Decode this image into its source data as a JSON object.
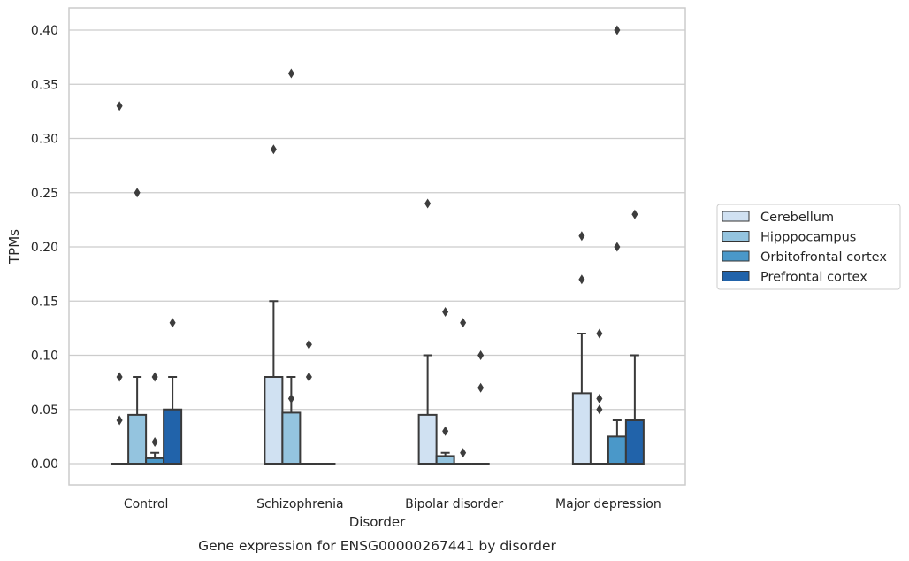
{
  "chart_data": {
    "type": "box",
    "caption": "Gene expression for ENSG00000267441 by disorder",
    "xlabel": "Disorder",
    "ylabel": "TPMs",
    "ylim": [
      -0.02,
      0.42
    ],
    "yticks": [
      0.0,
      0.05,
      0.1,
      0.15,
      0.2,
      0.25,
      0.3,
      0.35,
      0.4
    ],
    "ytick_labels": [
      "0.00",
      "0.05",
      "0.10",
      "0.15",
      "0.20",
      "0.25",
      "0.30",
      "0.35",
      "0.40"
    ],
    "categories": [
      "Control",
      "Schizophrenia",
      "Bipolar disorder",
      "Major depression"
    ],
    "grid": "horizontal",
    "legend_position": "right",
    "series": [
      {
        "name": "Cerebellum",
        "color": "#d0e1f2",
        "boxes": [
          {
            "q1": 0.0,
            "median": 0.0,
            "q3": 0.0,
            "whisker_low": 0.0,
            "whisker_high": 0.0,
            "outliers": [
              0.33,
              0.08,
              0.04
            ]
          },
          {
            "q1": 0.0,
            "median": 0.0,
            "q3": 0.08,
            "whisker_low": 0.0,
            "whisker_high": 0.15,
            "outliers": [
              0.29
            ]
          },
          {
            "q1": 0.0,
            "median": 0.0,
            "q3": 0.045,
            "whisker_low": 0.0,
            "whisker_high": 0.1,
            "outliers": [
              0.24
            ]
          },
          {
            "q1": 0.0,
            "median": 0.0,
            "q3": 0.065,
            "whisker_low": 0.0,
            "whisker_high": 0.12,
            "outliers": [
              0.21,
              0.17
            ]
          }
        ]
      },
      {
        "name": "Hipppocampus",
        "color": "#94c4df",
        "boxes": [
          {
            "q1": 0.0,
            "median": 0.0,
            "q3": 0.045,
            "whisker_low": 0.0,
            "whisker_high": 0.08,
            "outliers": [
              0.25
            ]
          },
          {
            "q1": 0.0,
            "median": 0.0,
            "q3": 0.047,
            "whisker_low": 0.0,
            "whisker_high": 0.08,
            "outliers": [
              0.36,
              0.06
            ]
          },
          {
            "q1": 0.0,
            "median": 0.0,
            "q3": 0.007,
            "whisker_low": 0.0,
            "whisker_high": 0.01,
            "outliers": [
              0.14,
              0.03
            ]
          },
          {
            "q1": 0.0,
            "median": 0.0,
            "q3": 0.0,
            "whisker_low": 0.0,
            "whisker_high": 0.0,
            "outliers": [
              0.12,
              0.06,
              0.05
            ]
          }
        ]
      },
      {
        "name": "Orbitofrontal cortex",
        "color": "#4a98c9",
        "boxes": [
          {
            "q1": 0.0,
            "median": 0.0,
            "q3": 0.005,
            "whisker_low": 0.0,
            "whisker_high": 0.01,
            "outliers": [
              0.08,
              0.02
            ]
          },
          {
            "q1": 0.0,
            "median": 0.0,
            "q3": 0.0,
            "whisker_low": 0.0,
            "whisker_high": 0.0,
            "outliers": [
              0.11,
              0.08
            ]
          },
          {
            "q1": 0.0,
            "median": 0.0,
            "q3": 0.0,
            "whisker_low": 0.0,
            "whisker_high": 0.0,
            "outliers": [
              0.13,
              0.01
            ]
          },
          {
            "q1": 0.0,
            "median": 0.0,
            "q3": 0.025,
            "whisker_low": 0.0,
            "whisker_high": 0.04,
            "outliers": [
              0.4,
              0.2
            ]
          }
        ]
      },
      {
        "name": "Prefrontal cortex",
        "color": "#2163aa",
        "boxes": [
          {
            "q1": 0.0,
            "median": 0.0,
            "q3": 0.05,
            "whisker_low": 0.0,
            "whisker_high": 0.08,
            "outliers": [
              0.13
            ]
          },
          {
            "q1": 0.0,
            "median": 0.0,
            "q3": 0.0,
            "whisker_low": 0.0,
            "whisker_high": 0.0,
            "outliers": []
          },
          {
            "q1": 0.0,
            "median": 0.0,
            "q3": 0.0,
            "whisker_low": 0.0,
            "whisker_high": 0.0,
            "outliers": [
              0.1,
              0.07
            ]
          },
          {
            "q1": 0.0,
            "median": 0.0,
            "q3": 0.04,
            "whisker_low": 0.0,
            "whisker_high": 0.1,
            "outliers": [
              0.23
            ]
          }
        ]
      }
    ]
  },
  "colors": {
    "box_edge": "#3a3a3a",
    "grid": "#cccccc",
    "frame": "#cccccc",
    "text": "#262626"
  }
}
